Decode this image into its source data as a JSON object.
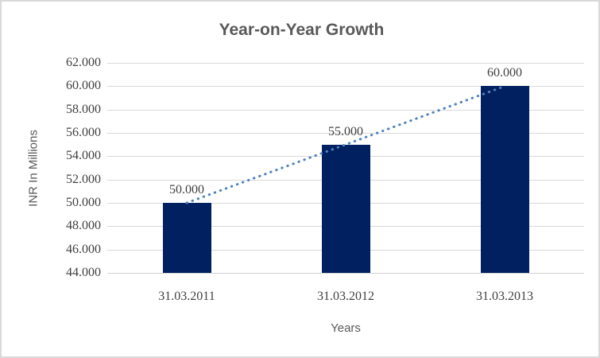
{
  "chart_data": {
    "type": "bar",
    "title": "Year-on-Year Growth",
    "xlabel": "Years",
    "ylabel": "INR In Millions",
    "categories": [
      "31.03.2011",
      "31.03.2012",
      "31.03.2013"
    ],
    "values": [
      50.0,
      55.0,
      60.0
    ],
    "data_labels": [
      "50.000",
      "55.000",
      "60.000"
    ],
    "ylim": [
      44,
      62
    ],
    "ytick_step": 2,
    "ytick_labels": [
      "44.000",
      "46.000",
      "48.000",
      "50.000",
      "52.000",
      "54.000",
      "56.000",
      "58.000",
      "60.000",
      "62.000"
    ],
    "grid": true,
    "legend": false,
    "trendline": {
      "type": "linear",
      "style": "dotted",
      "color": "#4F81BD"
    },
    "colors": {
      "bar": "#002060",
      "gridline": "#D9D9D9",
      "axis_line": "#CFCFCF",
      "heading_text": "#595959",
      "tick_text": "#404040",
      "frame_border": "#D9D9D9",
      "background": "#FFFFFF"
    }
  }
}
